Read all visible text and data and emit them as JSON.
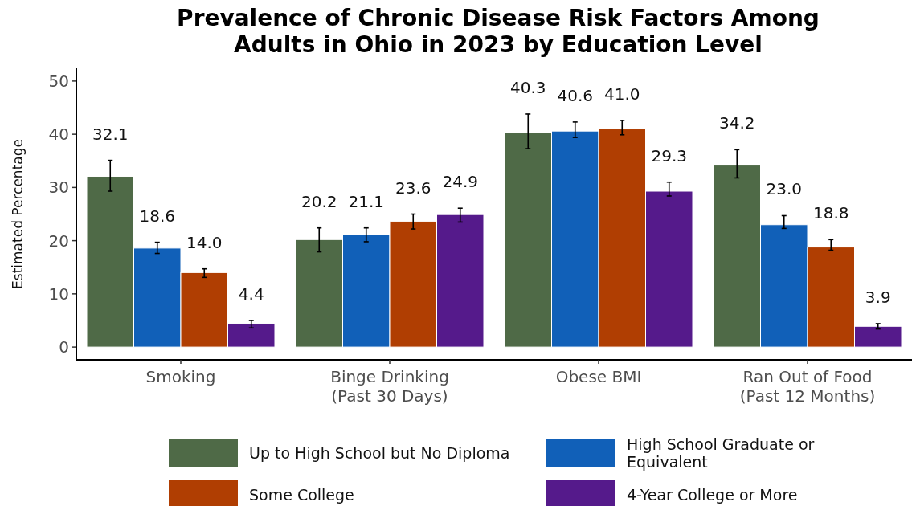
{
  "chart_data": {
    "type": "bar",
    "title": "Prevalence of Chronic Disease Risk Factors Among\nAdults in Ohio in 2023 by Education Level",
    "ylabel": "Estimated Percentage",
    "categories": [
      "Smoking",
      "Binge Drinking\n(Past 30 Days)",
      "Obese BMI",
      "Ran Out of Food\n(Past 12 Months)"
    ],
    "series": [
      {
        "name": "Up to High School but No Diploma",
        "color": "#4f6a47",
        "values": [
          32.1,
          20.2,
          40.3,
          34.2
        ],
        "value_labels": [
          "32.1",
          "20.2",
          "40.3",
          "34.2"
        ],
        "errors": [
          [
            29.3,
            35.1
          ],
          [
            17.9,
            22.4
          ],
          [
            37.3,
            43.8
          ],
          [
            31.8,
            37.1
          ]
        ]
      },
      {
        "name": "High School Graduate or Equivalent",
        "color": "#1160b8",
        "values": [
          18.6,
          21.1,
          40.6,
          23.0
        ],
        "value_labels": [
          "18.6",
          "21.1",
          "40.6",
          "23.0"
        ],
        "errors": [
          [
            17.6,
            19.7
          ],
          [
            19.8,
            22.4
          ],
          [
            39.4,
            42.3
          ],
          [
            22.3,
            24.7
          ]
        ]
      },
      {
        "name": "Some College",
        "color": "#b03e02",
        "values": [
          14.0,
          23.6,
          41.0,
          18.8
        ],
        "value_labels": [
          "14.0",
          "23.6",
          "41.0",
          "18.8"
        ],
        "errors": [
          [
            13.1,
            14.7
          ],
          [
            22.2,
            25.0
          ],
          [
            39.9,
            42.6
          ],
          [
            18.2,
            20.2
          ]
        ]
      },
      {
        "name": "4-Year College or More",
        "color": "#551a8b",
        "values": [
          4.4,
          24.9,
          29.3,
          3.9
        ],
        "value_labels": [
          "4.4",
          "24.9",
          "29.3",
          "3.9"
        ],
        "errors": [
          [
            3.6,
            5.0
          ],
          [
            23.5,
            26.1
          ],
          [
            28.4,
            31.0
          ],
          [
            3.4,
            4.4
          ]
        ]
      }
    ],
    "ylim": [
      -2.4,
      52.4
    ],
    "yticks": [
      0,
      10,
      20,
      30,
      40,
      50
    ],
    "grid": false,
    "legend": "bottom"
  }
}
